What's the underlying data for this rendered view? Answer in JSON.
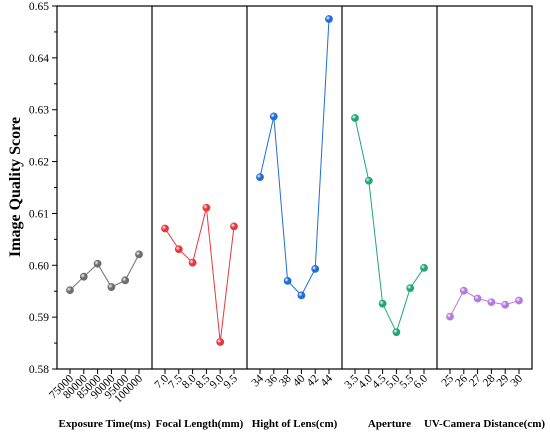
{
  "chart_data": {
    "type": "line",
    "ylabel": "Image Quality Score",
    "ylim": [
      0.58,
      0.65
    ],
    "yticks": [
      "0.58",
      "0.59",
      "0.60",
      "0.61",
      "0.62",
      "0.63",
      "0.64",
      "0.65"
    ],
    "grid": false,
    "panels": [
      {
        "xlabel": "Exposure Time(ms)",
        "x": [
          "75000",
          "80000",
          "85000",
          "90000",
          "95000",
          "100000"
        ],
        "values": [
          0.5952,
          0.5978,
          0.6003,
          0.5958,
          0.5971,
          0.6021
        ],
        "color": "#6e6e6e"
      },
      {
        "xlabel": "Focal Length(mm)",
        "x": [
          "7.0",
          "7.5",
          "8.0",
          "8.5",
          "9.0",
          "9.5"
        ],
        "values": [
          0.6071,
          0.6031,
          0.6005,
          0.6111,
          0.5852,
          0.6075
        ],
        "color": "#e8383d"
      },
      {
        "xlabel": "Hight of Lens(cm)",
        "x": [
          "34",
          "36",
          "38",
          "40",
          "42",
          "44"
        ],
        "values": [
          0.617,
          0.6287,
          0.597,
          0.5942,
          0.5993,
          0.6475
        ],
        "color": "#1f6fd1"
      },
      {
        "xlabel": "Aperture",
        "x": [
          "3.5",
          "4.0",
          "4.5",
          "5.0",
          "5.5",
          "6.0"
        ],
        "values": [
          0.6284,
          0.6163,
          0.5926,
          0.5871,
          0.5956,
          0.5995
        ],
        "color": "#1fa874"
      },
      {
        "xlabel": "UV-Camera Distance(cm)",
        "x": [
          "25",
          "26",
          "27",
          "28",
          "29",
          "30"
        ],
        "values": [
          0.5901,
          0.5951,
          0.5936,
          0.5929,
          0.5924,
          0.5932
        ],
        "color": "#b57ae0"
      }
    ]
  }
}
